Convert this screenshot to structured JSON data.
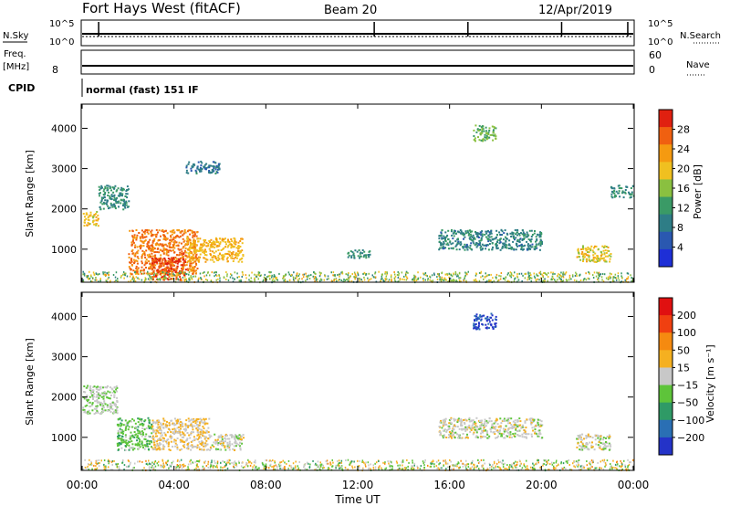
{
  "header": {
    "station": "Fort Hays West (fitACF)",
    "beam": "Beam 20",
    "date": "12/Apr/2019"
  },
  "strip_nsky": {
    "left_label": "N.Sky",
    "right_label": "N.Search",
    "tick_top": "10^5",
    "tick_bottom": "10^0",
    "right_tick_top": "10^5",
    "right_tick_bottom": "10^0"
  },
  "strip_freq": {
    "left_label_1": "Freq.",
    "left_label_2": "[MHz]",
    "left_tick_top": "",
    "left_tick_bottom": "8",
    "right_label": "Nave",
    "right_tick_top": "60",
    "right_tick_bottom": "0"
  },
  "cpid": {
    "label": "CPID",
    "mode": "normal (fast) 151 IF"
  },
  "xaxis": {
    "title": "Time UT",
    "ticks": [
      "00:00",
      "04:00",
      "08:00",
      "12:00",
      "16:00",
      "20:00",
      "00:00"
    ]
  },
  "panel_power": {
    "ylabel": "Slant Range [km]",
    "yticks": [
      "1000",
      "2000",
      "3000",
      "4000"
    ],
    "colorbar_label": "Power [dB]",
    "colorbar_ticks": [
      "28",
      "24",
      "20",
      "16",
      "12",
      "8",
      "4"
    ]
  },
  "panel_velocity": {
    "ylabel": "Slant Range [km]",
    "yticks": [
      "1000",
      "2000",
      "3000",
      "4000"
    ],
    "colorbar_label": "Velocity [m s⁻¹]",
    "colorbar_ticks": [
      "200",
      "100",
      "50",
      "15",
      "−15",
      "−50",
      "−100",
      "−200"
    ]
  },
  "colors": {
    "power_scale": [
      "#1e2fd6",
      "#2a58b0",
      "#2e7d86",
      "#3a9a66",
      "#8ac040",
      "#f0c020",
      "#f59a10",
      "#f06010",
      "#e02010"
    ],
    "velocity_scale": [
      "#2433c8",
      "#2a6fb4",
      "#2f9a66",
      "#5ec43a",
      "#c8c8c8",
      "#f5b020",
      "#f58a10",
      "#f04010",
      "#e01010"
    ]
  },
  "chart_data": [
    {
      "type": "heatmap",
      "title": "Power [dB]",
      "xlabel": "Time UT",
      "ylabel": "Slant Range [km]",
      "xlim": [
        0,
        24
      ],
      "ylim": [
        180,
        4600
      ],
      "clim": [
        0,
        30
      ],
      "regions": [
        {
          "t": [
            0.0,
            0.7
          ],
          "r": [
            1600,
            1950
          ],
          "value": 18
        },
        {
          "t": [
            0.7,
            2.0
          ],
          "r": [
            2000,
            2600
          ],
          "value": 10
        },
        {
          "t": [
            2.0,
            5.0
          ],
          "r": [
            400,
            1500
          ],
          "value": 24
        },
        {
          "t": [
            3.0,
            4.5
          ],
          "r": [
            250,
            800
          ],
          "value": 27
        },
        {
          "t": [
            4.5,
            7.0
          ],
          "r": [
            700,
            1300
          ],
          "value": 20
        },
        {
          "t": [
            4.5,
            6.0
          ],
          "r": [
            2900,
            3200
          ],
          "value": 8
        },
        {
          "t": [
            11.5,
            12.5
          ],
          "r": [
            800,
            1000
          ],
          "value": 10
        },
        {
          "t": [
            15.5,
            20.0
          ],
          "r": [
            1000,
            1500
          ],
          "value": 9
        },
        {
          "t": [
            21.5,
            23.0
          ],
          "r": [
            700,
            1100
          ],
          "value": 18
        },
        {
          "t": [
            23.0,
            24.0
          ],
          "r": [
            2300,
            2600
          ],
          "value": 10
        },
        {
          "t": [
            17.0,
            18.0
          ],
          "r": [
            3700,
            4100
          ],
          "value": 14
        }
      ]
    },
    {
      "type": "heatmap",
      "title": "Velocity [m s⁻¹]",
      "xlabel": "Time UT",
      "ylabel": "Slant Range [km]",
      "xlim": [
        0,
        24
      ],
      "ylim": [
        180,
        4600
      ],
      "clim": [
        -250,
        250
      ],
      "regions": [
        {
          "t": [
            0.0,
            1.5
          ],
          "r": [
            1600,
            2300
          ],
          "value": -20
        },
        {
          "t": [
            1.5,
            3.0
          ],
          "r": [
            700,
            1500
          ],
          "value": -60
        },
        {
          "t": [
            3.0,
            5.5
          ],
          "r": [
            700,
            1500
          ],
          "value": 30
        },
        {
          "t": [
            5.5,
            7.0
          ],
          "r": [
            700,
            1100
          ],
          "value": 0
        },
        {
          "t": [
            15.5,
            20.0
          ],
          "r": [
            1000,
            1500
          ],
          "value": 0
        },
        {
          "t": [
            21.5,
            23.0
          ],
          "r": [
            700,
            1100
          ],
          "value": 0
        },
        {
          "t": [
            17.0,
            18.0
          ],
          "r": [
            3700,
            4100
          ],
          "value": -200
        }
      ]
    }
  ]
}
